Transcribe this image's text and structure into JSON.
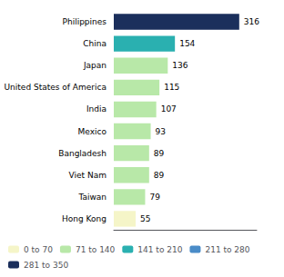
{
  "chart_data": {
    "type": "bar",
    "orientation": "horizontal",
    "stacked": true,
    "categories": [
      "Philippines",
      "China",
      "Japan",
      "United States of America",
      "India",
      "Mexico",
      "Bangladesh",
      "Viet Nam",
      "Taiwan",
      "Hong Kong"
    ],
    "series": [
      {
        "name": "0 to 70",
        "color": "#f5f5c8",
        "values": [
          null,
          null,
          null,
          null,
          null,
          null,
          null,
          null,
          null,
          55
        ]
      },
      {
        "name": "71 to 140",
        "color": "#b8e8a8",
        "values": [
          null,
          null,
          136,
          115,
          107,
          93,
          89,
          89,
          79,
          null
        ]
      },
      {
        "name": "141 to 210",
        "color": "#2ab0b0",
        "values": [
          null,
          154,
          null,
          null,
          null,
          null,
          null,
          null,
          null,
          null
        ]
      },
      {
        "name": "211 to 280",
        "color": "#4a8cc8",
        "values": [
          null,
          null,
          null,
          null,
          null,
          null,
          null,
          null,
          null,
          null
        ]
      },
      {
        "name": "281 to 350",
        "color": "#1b2f5c",
        "values": [
          316,
          null,
          null,
          null,
          null,
          null,
          null,
          null,
          null,
          null
        ]
      }
    ],
    "xlim": [
      0,
      360
    ],
    "data_labels": true,
    "tick_labels": "y",
    "grid": false,
    "legend": "lower left"
  }
}
